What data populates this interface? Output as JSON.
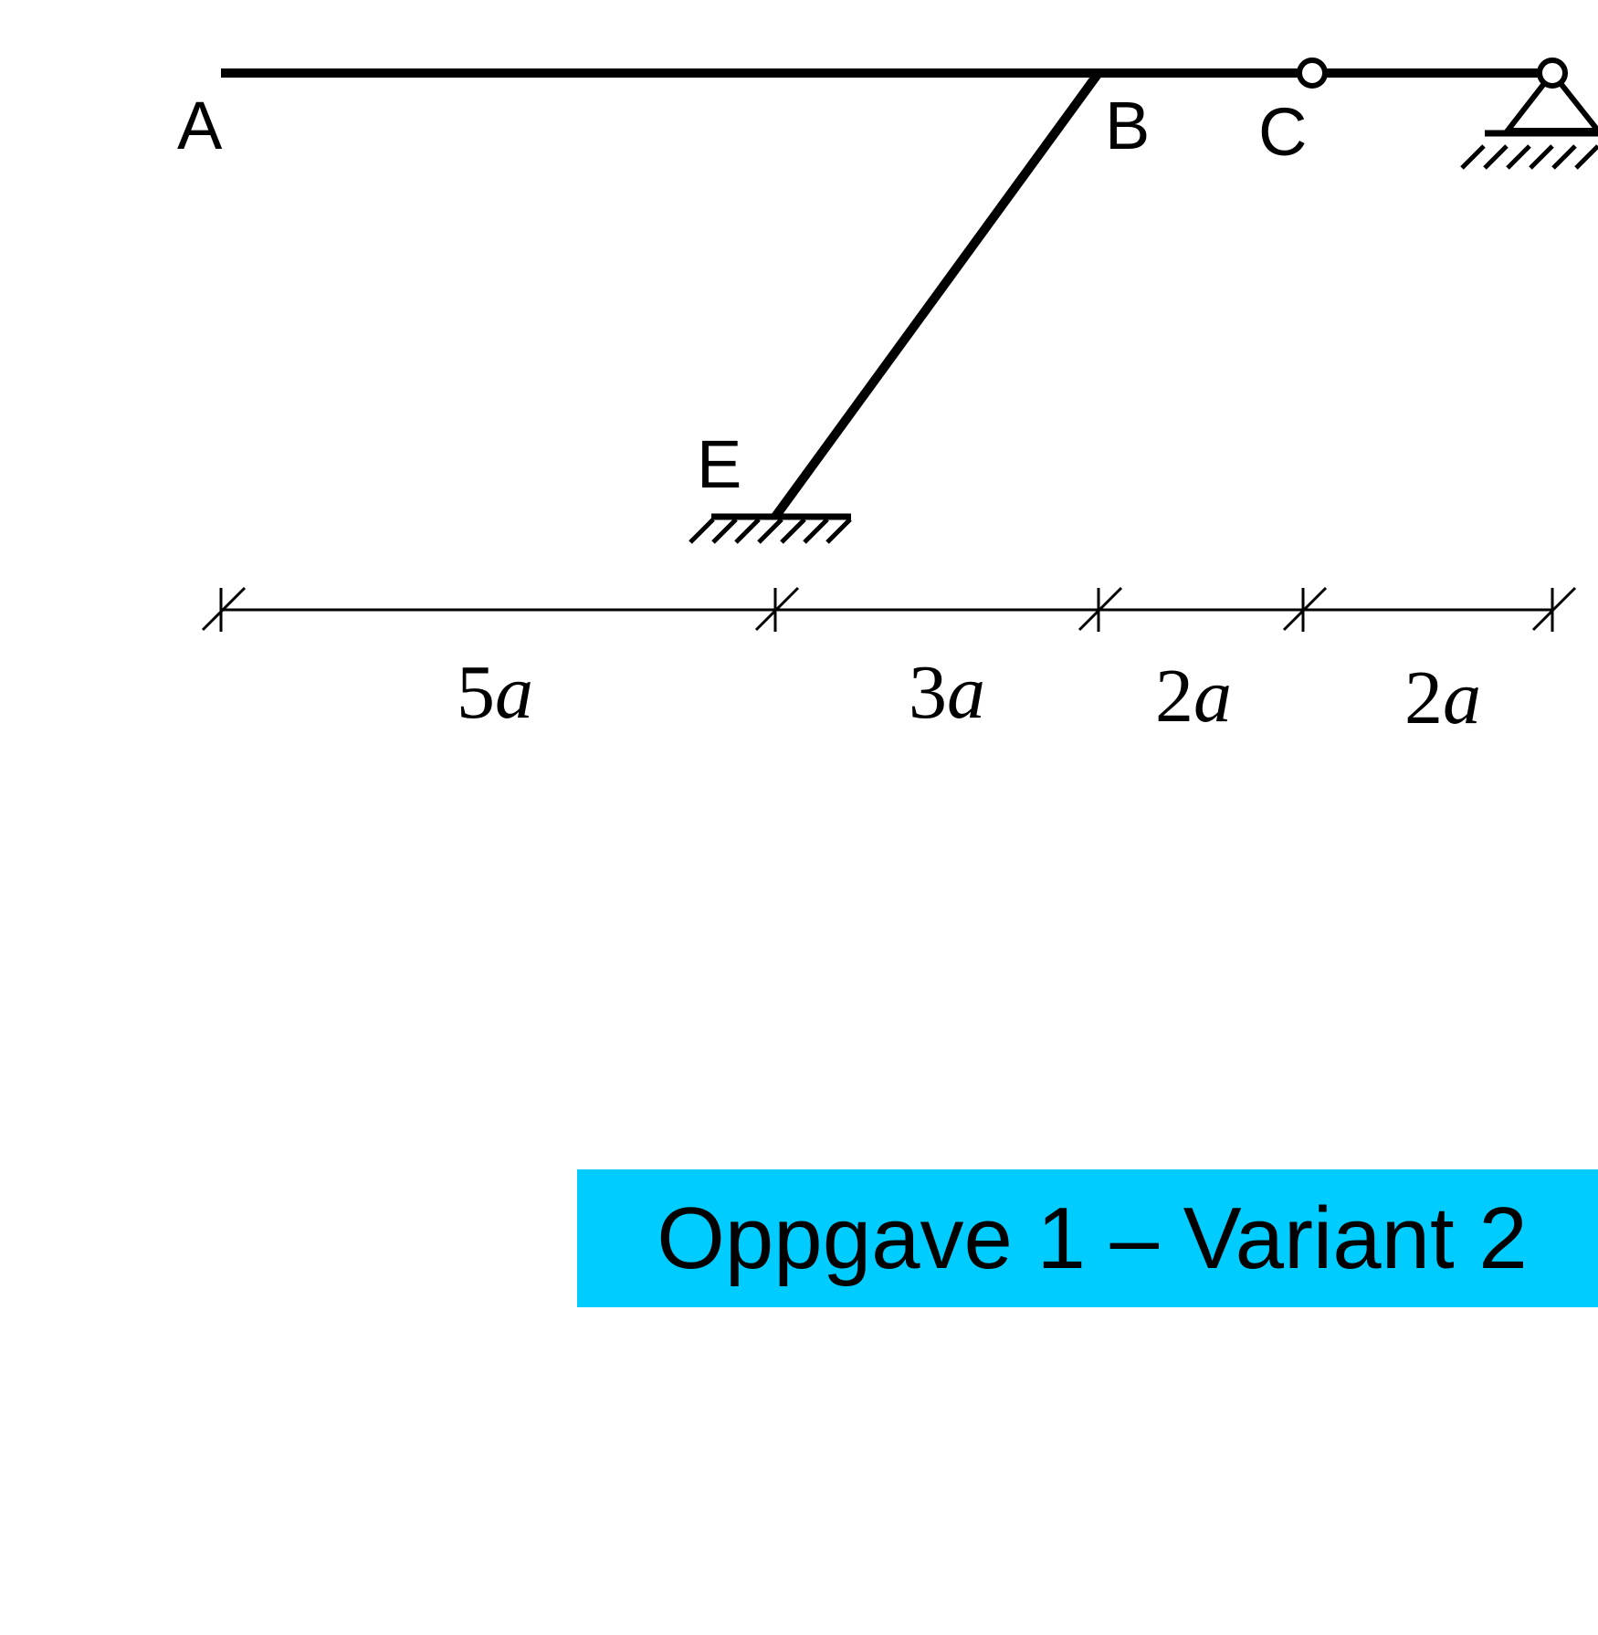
{
  "diagram": {
    "nodes": [
      {
        "id": "A",
        "label": "A"
      },
      {
        "id": "B",
        "label": "B"
      },
      {
        "id": "C",
        "label": "C"
      },
      {
        "id": "E",
        "label": "E"
      }
    ],
    "dimensions": [
      {
        "coef": "5",
        "unit": "a"
      },
      {
        "coef": "3",
        "unit": "a"
      },
      {
        "coef": "2",
        "unit": "a"
      },
      {
        "coef": "2",
        "unit": "a"
      }
    ]
  },
  "title": "Oppgave 1 – Variant 2",
  "colors": {
    "banner": "#00ccff",
    "ink": "#000000"
  }
}
